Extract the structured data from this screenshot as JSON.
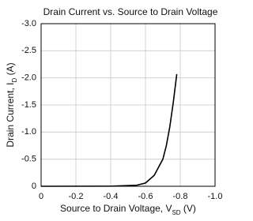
{
  "chart_data": {
    "type": "line",
    "title": "Drain Current vs. Source to Drain Voltage",
    "x_label": [
      "Source to Drain Voltage, V",
      "SD",
      " (V)"
    ],
    "y_label": [
      "Drain Current, I",
      "D",
      " (A)"
    ],
    "x": [
      0,
      -0.4,
      -0.55,
      -0.6,
      -0.65,
      -0.7,
      -0.72,
      -0.74,
      -0.76,
      -0.78
    ],
    "series": [
      {
        "color": "#000000",
        "values": [
          0,
          -0.002,
          -0.02,
          -0.06,
          -0.2,
          -0.5,
          -0.75,
          -1.1,
          -1.55,
          -2.07
        ]
      }
    ],
    "xlim": [
      0,
      {
        "value": -1,
        "label": "-1.0"
      }
    ],
    "xticks": [
      0,
      -0.2,
      -0.4,
      -0.6,
      -0.8,
      {
        "value": -1,
        "label": "-1.0"
      }
    ],
    "ylim": [
      0,
      {
        "value": -3,
        "label": "-3.0"
      }
    ],
    "yticks": [
      0,
      -0.5,
      {
        "value": -1,
        "label": "-1.0"
      },
      -1.5,
      {
        "value": -2,
        "label": "-2.0"
      },
      -2.5,
      {
        "value": -3,
        "label": "-3.0"
      }
    ],
    "grid": true
  }
}
